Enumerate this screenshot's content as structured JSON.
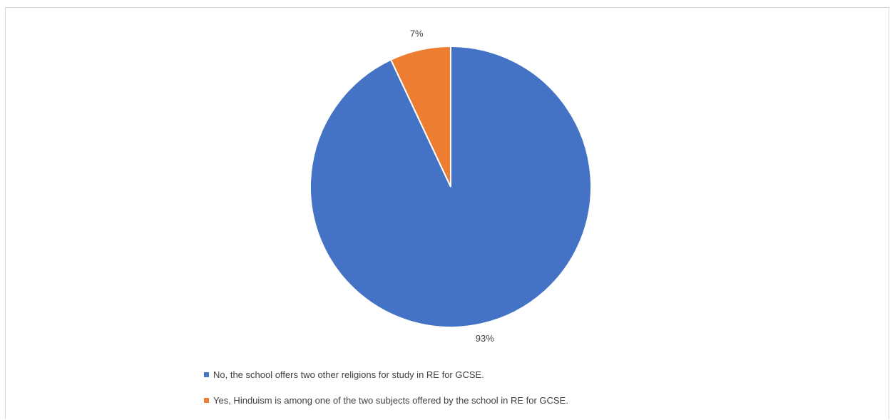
{
  "chart_data": {
    "type": "pie",
    "title": "",
    "slices": [
      {
        "label": "No, the school offers two other religions for study in RE for GCSE.",
        "value": 93,
        "display": "93%",
        "color": "#4472C4"
      },
      {
        "label": "Yes, Hinduism is among one of the two subjects offered by the school in RE for GCSE.",
        "value": 7,
        "display": "7%",
        "color": "#ED7D31"
      }
    ],
    "start_angle_deg": 0,
    "direction": "clockwise",
    "legend_position": "bottom"
  }
}
